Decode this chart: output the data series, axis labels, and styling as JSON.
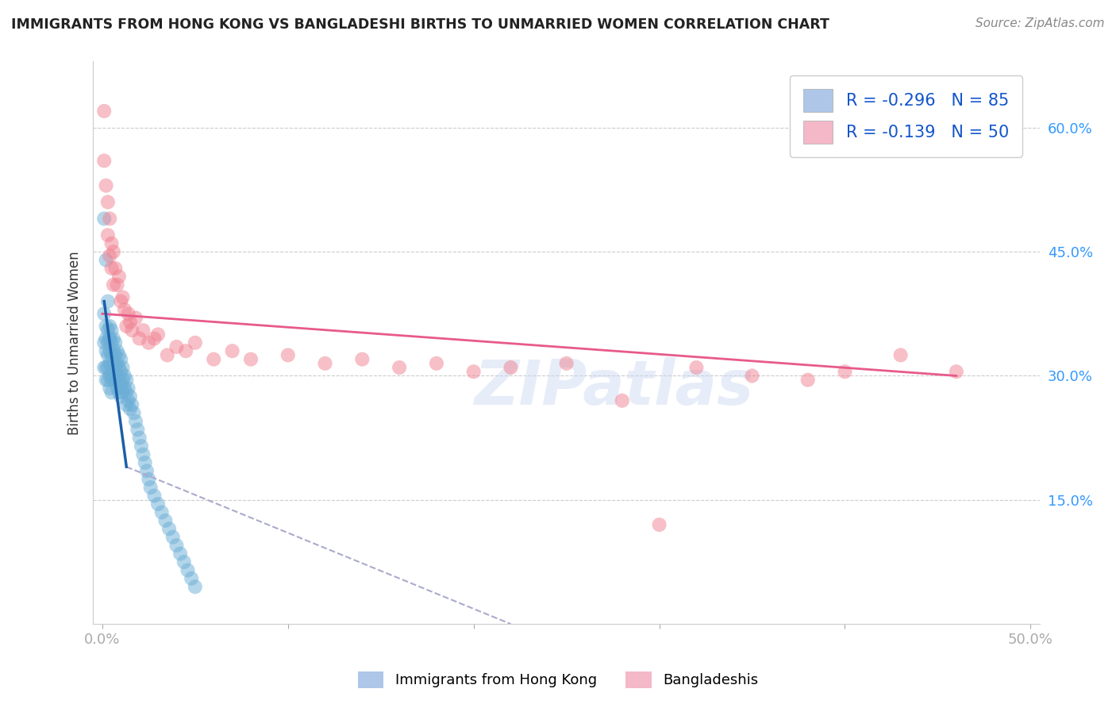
{
  "title": "IMMIGRANTS FROM HONG KONG VS BANGLADESHI BIRTHS TO UNMARRIED WOMEN CORRELATION CHART",
  "source": "Source: ZipAtlas.com",
  "ylabel": "Births to Unmarried Women",
  "y_ticks": [
    0.15,
    0.3,
    0.45,
    0.6
  ],
  "y_tick_labels": [
    "15.0%",
    "30.0%",
    "45.0%",
    "60.0%"
  ],
  "x_ticks": [
    0.0,
    0.1,
    0.2,
    0.3,
    0.4,
    0.5
  ],
  "x_tick_labels": [
    "0.0%",
    "",
    "",
    "",
    "",
    "50.0%"
  ],
  "xlim": [
    -0.005,
    0.505
  ],
  "ylim": [
    0.0,
    0.68
  ],
  "hk_color": "#6baed6",
  "bd_color": "#f08090",
  "hk_alpha": 0.5,
  "bd_alpha": 0.5,
  "hk_markersize": 170,
  "bd_markersize": 170,
  "background_color": "#ffffff",
  "grid_color": "#cccccc",
  "axis_color": "#3399ff",
  "watermark": "ZIPatlas",
  "hk_scatter_x": [
    0.001,
    0.001,
    0.001,
    0.002,
    0.002,
    0.002,
    0.002,
    0.002,
    0.003,
    0.003,
    0.003,
    0.003,
    0.003,
    0.004,
    0.004,
    0.004,
    0.004,
    0.004,
    0.004,
    0.005,
    0.005,
    0.005,
    0.005,
    0.005,
    0.005,
    0.006,
    0.006,
    0.006,
    0.006,
    0.007,
    0.007,
    0.007,
    0.007,
    0.008,
    0.008,
    0.008,
    0.008,
    0.009,
    0.009,
    0.009,
    0.009,
    0.01,
    0.01,
    0.01,
    0.01,
    0.011,
    0.011,
    0.011,
    0.012,
    0.012,
    0.013,
    0.013,
    0.013,
    0.014,
    0.014,
    0.015,
    0.015,
    0.016,
    0.017,
    0.018,
    0.019,
    0.02,
    0.021,
    0.022,
    0.023,
    0.024,
    0.025,
    0.026,
    0.028,
    0.03,
    0.032,
    0.034,
    0.036,
    0.038,
    0.04,
    0.042,
    0.044,
    0.046,
    0.048,
    0.05,
    0.001,
    0.002,
    0.003,
    0.004,
    0.005
  ],
  "hk_scatter_y": [
    0.375,
    0.34,
    0.31,
    0.36,
    0.345,
    0.33,
    0.31,
    0.295,
    0.355,
    0.34,
    0.325,
    0.31,
    0.295,
    0.36,
    0.345,
    0.33,
    0.315,
    0.3,
    0.285,
    0.355,
    0.34,
    0.325,
    0.31,
    0.295,
    0.28,
    0.345,
    0.33,
    0.315,
    0.3,
    0.34,
    0.325,
    0.31,
    0.295,
    0.33,
    0.315,
    0.3,
    0.285,
    0.325,
    0.31,
    0.295,
    0.28,
    0.32,
    0.305,
    0.29,
    0.275,
    0.31,
    0.295,
    0.28,
    0.3,
    0.285,
    0.295,
    0.28,
    0.265,
    0.285,
    0.27,
    0.275,
    0.26,
    0.265,
    0.255,
    0.245,
    0.235,
    0.225,
    0.215,
    0.205,
    0.195,
    0.185,
    0.175,
    0.165,
    0.155,
    0.145,
    0.135,
    0.125,
    0.115,
    0.105,
    0.095,
    0.085,
    0.075,
    0.065,
    0.055,
    0.045,
    0.49,
    0.44,
    0.39,
    0.345,
    0.3
  ],
  "bd_scatter_x": [
    0.001,
    0.001,
    0.002,
    0.003,
    0.003,
    0.004,
    0.004,
    0.005,
    0.005,
    0.006,
    0.006,
    0.007,
    0.008,
    0.009,
    0.01,
    0.011,
    0.012,
    0.013,
    0.014,
    0.015,
    0.016,
    0.018,
    0.02,
    0.022,
    0.025,
    0.028,
    0.03,
    0.035,
    0.04,
    0.045,
    0.05,
    0.06,
    0.07,
    0.08,
    0.1,
    0.12,
    0.14,
    0.16,
    0.18,
    0.2,
    0.22,
    0.25,
    0.28,
    0.32,
    0.4,
    0.43,
    0.46,
    0.38,
    0.35,
    0.3
  ],
  "bd_scatter_y": [
    0.62,
    0.56,
    0.53,
    0.47,
    0.51,
    0.49,
    0.445,
    0.43,
    0.46,
    0.41,
    0.45,
    0.43,
    0.41,
    0.42,
    0.39,
    0.395,
    0.38,
    0.36,
    0.375,
    0.365,
    0.355,
    0.37,
    0.345,
    0.355,
    0.34,
    0.345,
    0.35,
    0.325,
    0.335,
    0.33,
    0.34,
    0.32,
    0.33,
    0.32,
    0.325,
    0.315,
    0.32,
    0.31,
    0.315,
    0.305,
    0.31,
    0.315,
    0.27,
    0.31,
    0.305,
    0.325,
    0.305,
    0.295,
    0.3,
    0.12
  ],
  "bd_line_x0": 0.0,
  "bd_line_y0": 0.375,
  "bd_line_x1": 0.46,
  "bd_line_y1": 0.3,
  "hk_line_solid_x0": 0.001,
  "hk_line_solid_y0": 0.39,
  "hk_line_solid_x1": 0.013,
  "hk_line_solid_y1": 0.19,
  "hk_line_dash_x1": 0.22,
  "hk_line_dash_y1": 0.0
}
